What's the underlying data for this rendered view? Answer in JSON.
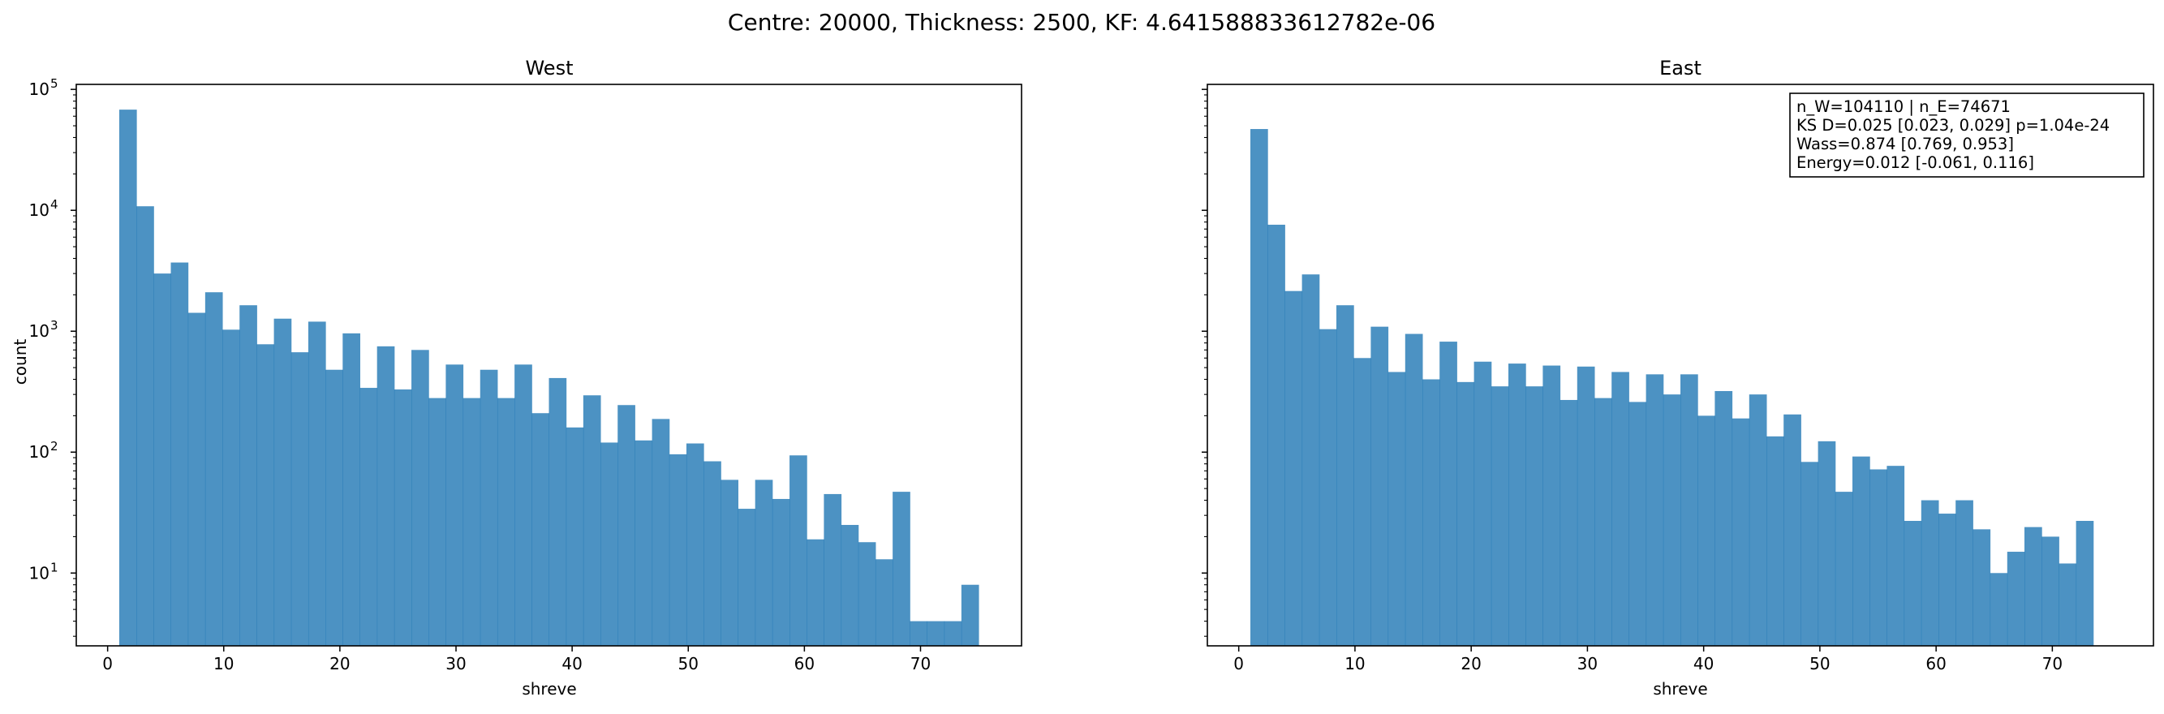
{
  "figure": {
    "suptitle": "Centre: 20000, Thickness: 2500, KF: 4.641588833612782e-06"
  },
  "chart_data": [
    {
      "type": "histogram",
      "title": "West",
      "xlabel": "shreve",
      "ylabel": "count",
      "yscale": "log",
      "xlim": [
        -2.7,
        78.7
      ],
      "ylim": [
        2.5,
        110000
      ],
      "bin_start": 1,
      "bin_width": 1.48,
      "color": "#1f77b4",
      "alpha": 0.8,
      "xticks": [
        0,
        10,
        20,
        30,
        40,
        50,
        60,
        70
      ],
      "yticks": [
        {
          "value": 10,
          "label": "10"
        },
        {
          "value": 100,
          "label": "10"
        },
        {
          "value": 1000,
          "label": "10"
        },
        {
          "value": 10000,
          "label": "10"
        },
        {
          "value": 100000,
          "label": "10"
        }
      ],
      "ytick_exponents": [
        "1",
        "2",
        "3",
        "4",
        "5"
      ],
      "counts": [
        68000,
        10800,
        3000,
        3700,
        1420,
        2100,
        1030,
        1640,
        780,
        1270,
        670,
        1200,
        480,
        960,
        340,
        750,
        330,
        700,
        280,
        530,
        280,
        480,
        280,
        530,
        210,
        410,
        160,
        295,
        120,
        245,
        125,
        188,
        96,
        118,
        84,
        59,
        34,
        59,
        41,
        94,
        19,
        45,
        25,
        18,
        13,
        47,
        4,
        4,
        4,
        8
      ]
    },
    {
      "type": "histogram",
      "title": "East",
      "xlabel": "shreve",
      "ylabel": "",
      "yscale": "log",
      "xlim": [
        -2.7,
        78.7
      ],
      "ylim": [
        2.5,
        110000
      ],
      "bin_start": 1,
      "bin_width": 1.48,
      "color": "#1f77b4",
      "alpha": 0.8,
      "xticks": [
        0,
        10,
        20,
        30,
        40,
        50,
        60,
        70
      ],
      "yticks": [],
      "counts": [
        47000,
        7600,
        2150,
        2950,
        1040,
        1640,
        600,
        1090,
        460,
        950,
        400,
        820,
        380,
        560,
        350,
        540,
        350,
        520,
        270,
        510,
        280,
        460,
        260,
        440,
        300,
        440,
        200,
        320,
        190,
        300,
        135,
        205,
        83,
        123,
        47,
        92,
        72,
        77,
        27,
        40,
        31,
        40,
        23,
        10,
        15,
        24,
        20,
        12,
        27
      ]
    }
  ],
  "stats_box": {
    "lines": [
      "n_W=104110 | n_E=74671",
      "KS D=0.025 [0.023, 0.029]  p=1.04e-24",
      "Wass=0.874 [0.769, 0.953]",
      "Energy=0.012 [-0.061, 0.116]"
    ]
  }
}
